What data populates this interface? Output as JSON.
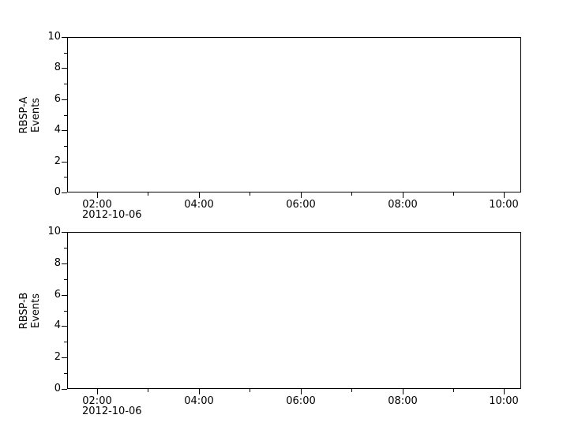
{
  "figure": {
    "background_color": "#ffffff",
    "axis_color": "#000000",
    "panels": [
      {
        "id": "rbsp-a",
        "ylabel_lines": [
          "RBSP-A",
          "Events"
        ],
        "y_tick_labels": [
          "10",
          "8",
          "6",
          "4",
          "2",
          "0"
        ],
        "x_tick_labels": [
          "02:00",
          "04:00",
          "06:00",
          "08:00",
          "10:00"
        ],
        "date_label": "2012-10-06"
      },
      {
        "id": "rbsp-b",
        "ylabel_lines": [
          "RBSP-B",
          "Events"
        ],
        "y_tick_labels": [
          "10",
          "8",
          "6",
          "4",
          "2",
          "0"
        ],
        "x_tick_labels": [
          "02:00",
          "04:00",
          "06:00",
          "08:00",
          "10:00"
        ],
        "date_label": "2012-10-06"
      }
    ]
  },
  "chart_data": [
    {
      "type": "line",
      "title": "",
      "xlabel": "",
      "ylabel": "RBSP-A Events",
      "date": "2012-10-06",
      "x_tick_labels": [
        "02:00",
        "04:00",
        "06:00",
        "08:00",
        "10:00"
      ],
      "x_minor_tick_labels": [
        "03:00",
        "05:00",
        "07:00",
        "09:00"
      ],
      "xlim": [
        "2012-10-06 01:25",
        "2012-10-06 10:20"
      ],
      "y_ticks": [
        0,
        2,
        4,
        6,
        8,
        10
      ],
      "y_minor_ticks": [
        1,
        3,
        5,
        7,
        9
      ],
      "ylim": [
        0,
        10
      ],
      "grid": false,
      "legend": null,
      "series": []
    },
    {
      "type": "line",
      "title": "",
      "xlabel": "",
      "ylabel": "RBSP-B Events",
      "date": "2012-10-06",
      "x_tick_labels": [
        "02:00",
        "04:00",
        "06:00",
        "08:00",
        "10:00"
      ],
      "x_minor_tick_labels": [
        "03:00",
        "05:00",
        "07:00",
        "09:00"
      ],
      "xlim": [
        "2012-10-06 01:25",
        "2012-10-06 10:20"
      ],
      "y_ticks": [
        0,
        2,
        4,
        6,
        8,
        10
      ],
      "y_minor_ticks": [
        1,
        3,
        5,
        7,
        9
      ],
      "ylim": [
        0,
        10
      ],
      "grid": false,
      "legend": null,
      "series": []
    }
  ]
}
